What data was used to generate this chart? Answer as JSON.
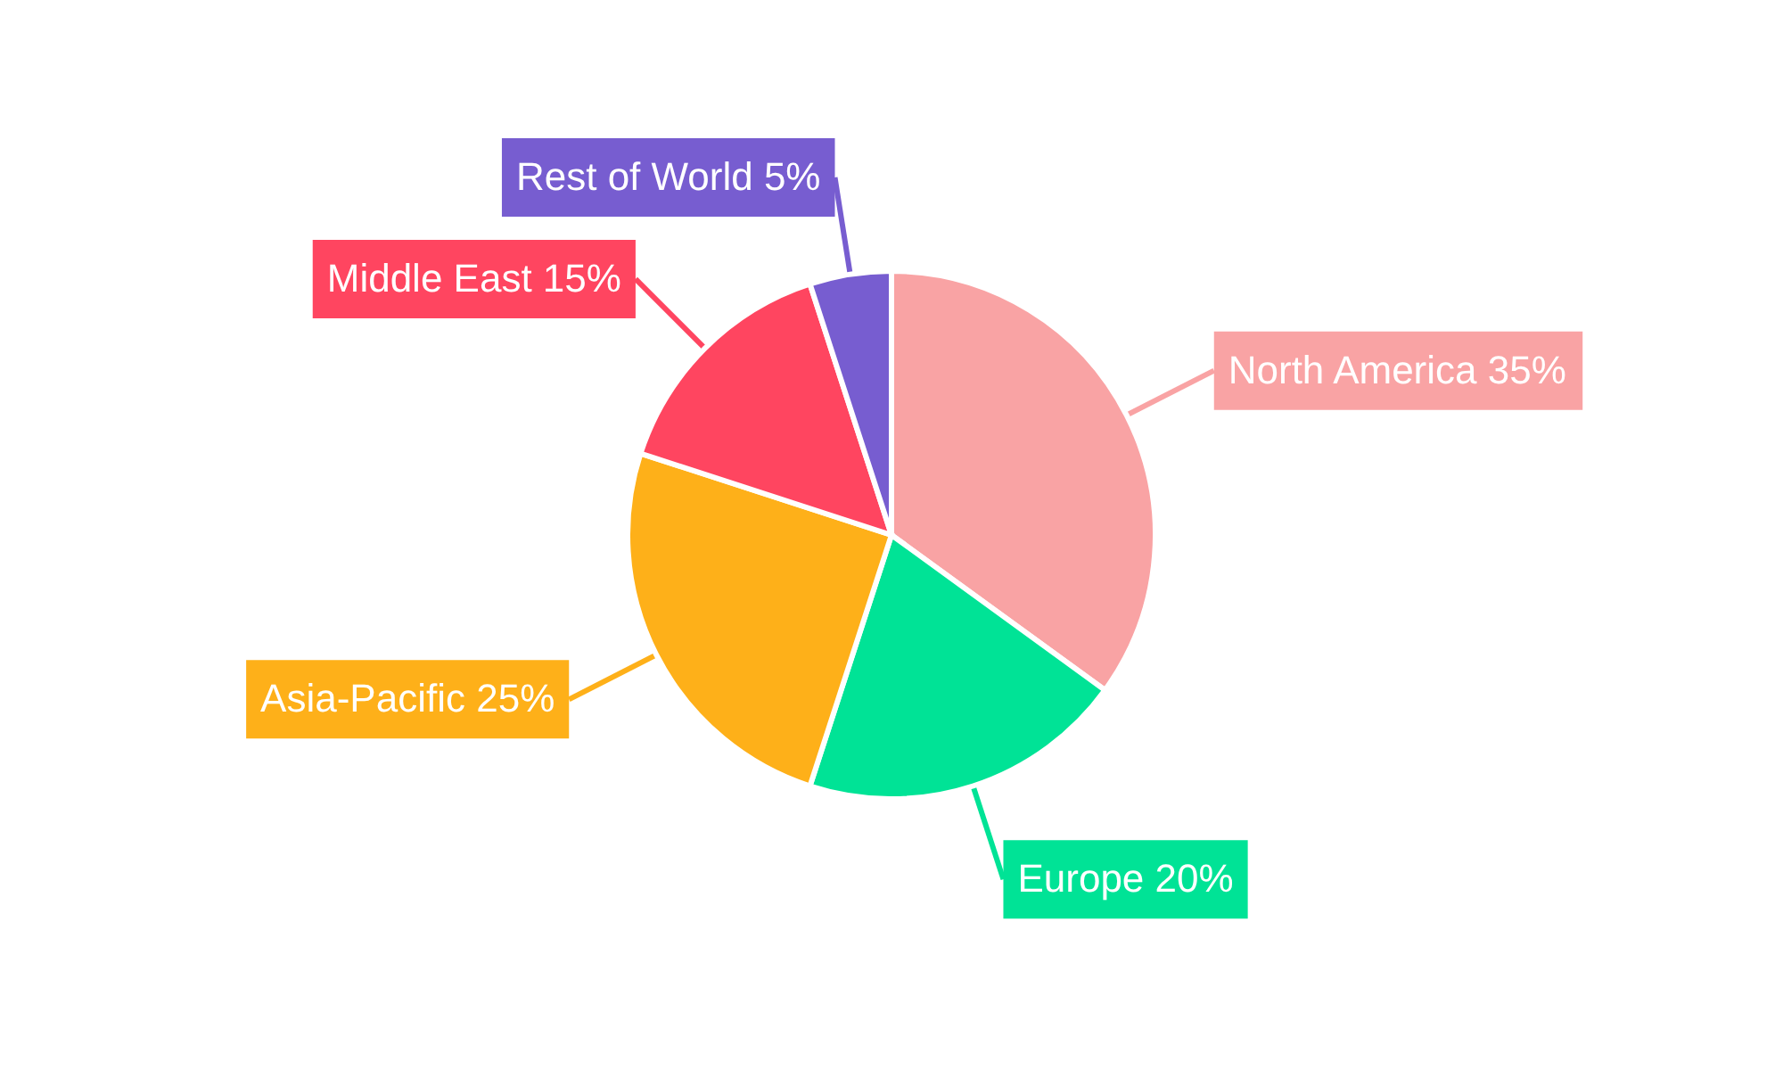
{
  "chart_data": {
    "type": "pie",
    "categories": [
      "North America",
      "Europe",
      "Asia-Pacific",
      "Middle East",
      "Rest of World"
    ],
    "values": [
      35,
      20,
      25,
      15,
      5
    ],
    "value_labels": [
      "35%",
      "20%",
      "25%",
      "15%",
      "5%"
    ],
    "colors": [
      "#f9a3a4",
      "#00e396",
      "#feb019",
      "#ff4560",
      "#775dd0"
    ]
  }
}
